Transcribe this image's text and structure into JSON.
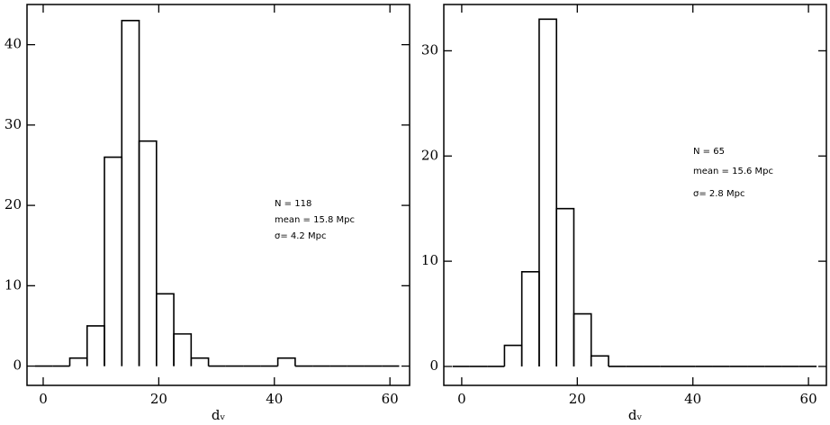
{
  "chart_data": [
    {
      "type": "histogram",
      "bins": [
        -1.4,
        1.6,
        4.6,
        7.6,
        10.6,
        13.6,
        16.6,
        19.6,
        22.6,
        25.6,
        28.6,
        31.6,
        34.6,
        37.6,
        40.6,
        43.6,
        46.6,
        49.6,
        52.6,
        55.6,
        58.6,
        61.6
      ],
      "values": [
        0,
        0,
        1,
        5,
        26,
        43,
        28,
        9,
        4,
        1,
        0,
        0,
        0,
        0,
        1,
        0,
        0,
        0,
        0,
        0,
        0
      ],
      "color": "#000000",
      "xlabel": "dᵥ",
      "xlim": [
        -2.8,
        63.4
      ],
      "xticks": [
        0,
        20,
        40,
        60
      ],
      "ylim": [
        -2.4,
        45
      ],
      "yticks": [
        0,
        10,
        20,
        30,
        40
      ],
      "annotations": [
        "N = 118",
        "mean = 15.8 Mpc",
        "σ= 4.2 Mpc"
      ]
    },
    {
      "type": "histogram",
      "bins": [
        -1.6,
        1.4,
        4.4,
        7.4,
        10.4,
        13.4,
        16.4,
        19.4,
        22.4,
        25.4,
        28.4,
        31.4,
        34.4,
        37.4,
        40.4,
        43.4,
        46.4,
        49.4,
        52.4,
        55.4,
        58.4,
        61.4
      ],
      "values": [
        0,
        0,
        0,
        2,
        9,
        33,
        15,
        5,
        1,
        0,
        0,
        0,
        0,
        0,
        0,
        0,
        0,
        0,
        0,
        0,
        0
      ],
      "color": "#000000",
      "xlabel": "dᵥ",
      "xlim": [
        -3.1,
        63.1
      ],
      "xticks": [
        0,
        20,
        40,
        60
      ],
      "ylim": [
        -1.8,
        34.4
      ],
      "yticks": [
        0,
        10,
        20,
        30
      ],
      "annotations": [
        "N = 65",
        "mean = 15.6 Mpc",
        "σ= 2.8 Mpc"
      ]
    }
  ]
}
